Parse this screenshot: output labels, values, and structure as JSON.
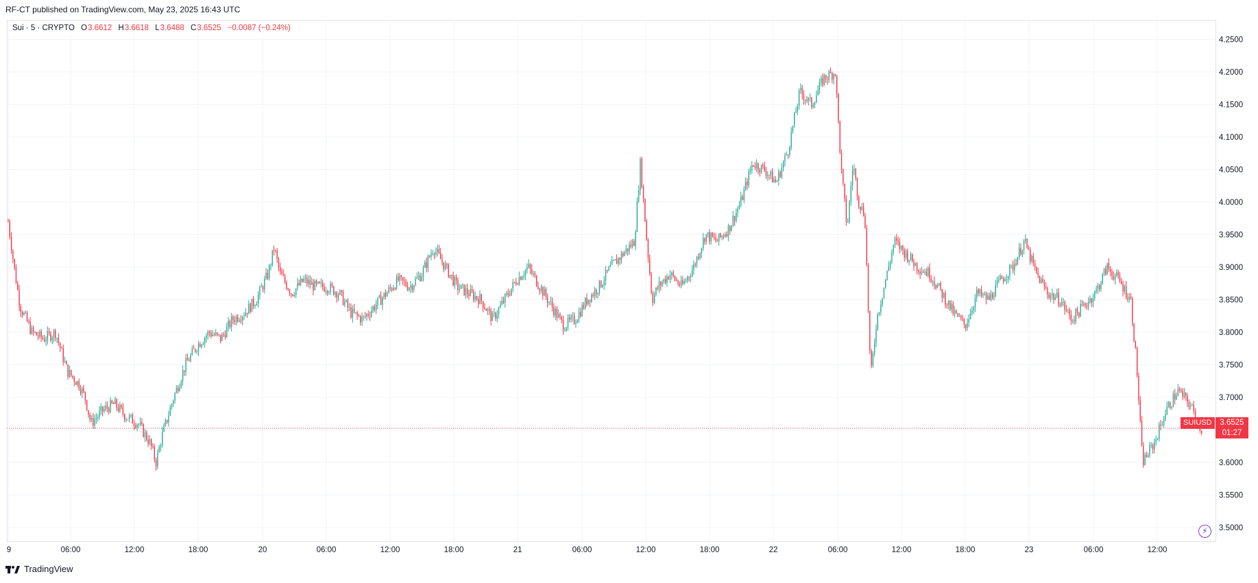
{
  "header": {
    "publish_text": "RF-CT published on TradingView.com, May 23, 2025 16:43 UTC"
  },
  "legend": {
    "symbol": "Sui · 5 · CRYPTO",
    "o_label": "O",
    "o_value": "3.6612",
    "h_label": "H",
    "h_value": "3.6618",
    "l_label": "L",
    "l_value": "3.6488",
    "c_label": "C",
    "c_value": "3.6525",
    "change": "−0.0087 (−0.24%)"
  },
  "last_price": {
    "symbol_tag": "SUIUSD",
    "price": "3.6525",
    "countdown": "01:27"
  },
  "footer": {
    "brand": "TradingView"
  },
  "colors": {
    "up": "#22ab94",
    "down": "#f23645",
    "grid": "#f0f3fa",
    "axis_text": "#131722"
  },
  "icons": {
    "bolt": "lightning-icon",
    "logo": "tradingview-logo-icon"
  },
  "chart_data": {
    "type": "candlestick",
    "symbol": "SUIUSD",
    "interval": "5",
    "y_ticks": [
      "4.2500",
      "4.2000",
      "4.1500",
      "4.1000",
      "4.0500",
      "4.0000",
      "3.9500",
      "3.9000",
      "3.8500",
      "3.8000",
      "3.7500",
      "3.7000",
      "3.6500",
      "3.6000",
      "3.5500",
      "3.5000"
    ],
    "x_ticks": [
      "9",
      "06:00",
      "12:00",
      "18:00",
      "20",
      "06:00",
      "12:00",
      "18:00",
      "21",
      "06:00",
      "12:00",
      "18:00",
      "22",
      "06:00",
      "12:00",
      "18:00",
      "23",
      "06:00",
      "12:00"
    ],
    "ylim": [
      3.48,
      4.28
    ],
    "last_price": 3.6525,
    "grid": true,
    "path_points": [
      [
        0,
        3.97
      ],
      [
        0.5,
        3.9
      ],
      [
        1,
        3.84
      ],
      [
        2,
        3.8
      ],
      [
        3,
        3.79
      ],
      [
        4,
        3.8
      ],
      [
        5,
        3.74
      ],
      [
        6,
        3.72
      ],
      [
        6.5,
        3.7
      ],
      [
        7,
        3.66
      ],
      [
        8,
        3.68
      ],
      [
        9,
        3.69
      ],
      [
        10,
        3.67
      ],
      [
        11,
        3.66
      ],
      [
        12,
        3.63
      ],
      [
        12.5,
        3.6
      ],
      [
        13,
        3.64
      ],
      [
        14,
        3.7
      ],
      [
        15,
        3.75
      ],
      [
        16,
        3.78
      ],
      [
        17,
        3.8
      ],
      [
        18,
        3.79
      ],
      [
        19,
        3.82
      ],
      [
        20,
        3.83
      ],
      [
        21,
        3.85
      ],
      [
        22,
        3.89
      ],
      [
        22.5,
        3.93
      ],
      [
        23,
        3.89
      ],
      [
        24,
        3.86
      ],
      [
        25,
        3.88
      ],
      [
        26,
        3.87
      ],
      [
        27,
        3.87
      ],
      [
        28,
        3.86
      ],
      [
        29,
        3.83
      ],
      [
        30,
        3.82
      ],
      [
        31,
        3.84
      ],
      [
        32,
        3.86
      ],
      [
        33,
        3.88
      ],
      [
        34,
        3.87
      ],
      [
        35,
        3.89
      ],
      [
        36,
        3.93
      ],
      [
        37,
        3.9
      ],
      [
        38,
        3.87
      ],
      [
        39,
        3.86
      ],
      [
        40,
        3.85
      ],
      [
        41,
        3.82
      ],
      [
        42,
        3.85
      ],
      [
        43,
        3.88
      ],
      [
        44,
        3.9
      ],
      [
        45,
        3.87
      ],
      [
        46,
        3.84
      ],
      [
        47,
        3.81
      ],
      [
        48,
        3.82
      ],
      [
        49,
        3.85
      ],
      [
        50,
        3.87
      ],
      [
        51,
        3.9
      ],
      [
        52,
        3.92
      ],
      [
        53,
        3.94
      ],
      [
        53.5,
        4.06
      ],
      [
        54,
        3.95
      ],
      [
        54.5,
        3.85
      ],
      [
        55,
        3.87
      ],
      [
        56,
        3.89
      ],
      [
        57,
        3.87
      ],
      [
        58,
        3.9
      ],
      [
        59,
        3.95
      ],
      [
        60,
        3.94
      ],
      [
        61,
        3.96
      ],
      [
        62,
        4.0
      ],
      [
        63,
        4.06
      ],
      [
        64,
        4.05
      ],
      [
        65,
        4.03
      ],
      [
        66,
        4.08
      ],
      [
        67,
        4.17
      ],
      [
        68,
        4.15
      ],
      [
        69,
        4.19
      ],
      [
        70,
        4.2
      ],
      [
        70.5,
        4.05
      ],
      [
        71,
        3.96
      ],
      [
        71.5,
        4.06
      ],
      [
        72,
        4.0
      ],
      [
        72.5,
        3.98
      ],
      [
        73,
        3.73
      ],
      [
        73.5,
        3.82
      ],
      [
        74,
        3.86
      ],
      [
        75,
        3.94
      ],
      [
        76,
        3.92
      ],
      [
        77,
        3.9
      ],
      [
        78,
        3.89
      ],
      [
        79,
        3.86
      ],
      [
        80,
        3.83
      ],
      [
        81,
        3.81
      ],
      [
        82,
        3.86
      ],
      [
        83,
        3.85
      ],
      [
        84,
        3.88
      ],
      [
        85,
        3.9
      ],
      [
        86,
        3.94
      ],
      [
        87,
        3.89
      ],
      [
        88,
        3.86
      ],
      [
        89,
        3.85
      ],
      [
        90,
        3.82
      ],
      [
        91,
        3.84
      ],
      [
        92,
        3.86
      ],
      [
        93,
        3.9
      ],
      [
        94,
        3.88
      ],
      [
        95,
        3.85
      ],
      [
        95.5,
        3.75
      ],
      [
        96,
        3.6
      ],
      [
        97,
        3.63
      ],
      [
        98,
        3.68
      ],
      [
        99,
        3.71
      ],
      [
        100,
        3.69
      ],
      [
        101,
        3.65
      ]
    ]
  }
}
